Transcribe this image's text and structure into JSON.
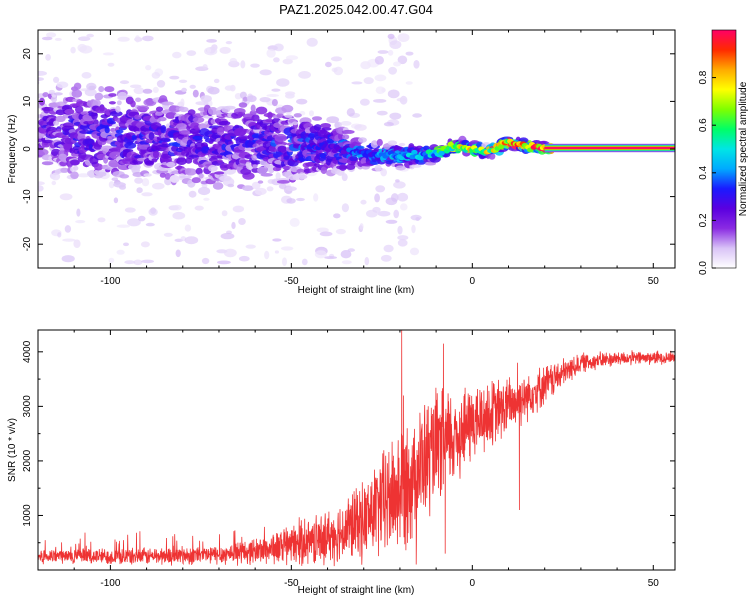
{
  "title": "PAZ1.2025.042.00.47.G04",
  "colorbar": {
    "label": "Normalized spectral amplitude",
    "ticks": [
      "0.0",
      "0.2",
      "0.4",
      "0.6",
      "0.8"
    ],
    "tick_values": [
      0.0,
      0.2,
      0.4,
      0.6,
      0.8
    ],
    "range": [
      0,
      1
    ],
    "colors": [
      "#ffffff",
      "#d9c3f7",
      "#8a2be2",
      "#5a00e0",
      "#1a1aff",
      "#00aaff",
      "#00e5e5",
      "#00ff66",
      "#7fff00",
      "#ffff00",
      "#ffaa00",
      "#ff2a00",
      "#ff0066"
    ]
  },
  "chart_data": [
    {
      "type": "heatmap",
      "title": "",
      "xlabel": "Height of straight line (km)",
      "ylabel": "Frequency (Hz)",
      "xlim": [
        -120,
        56
      ],
      "ylim": [
        -25,
        25
      ],
      "xticks": [
        -100,
        -50,
        0,
        50
      ],
      "yticks": [
        -20,
        -10,
        0,
        10,
        20
      ],
      "xtick_labels": [
        "-100",
        "-50",
        "0",
        "50"
      ],
      "ytick_labels": [
        "-20",
        "-10",
        "0",
        "10",
        "20"
      ],
      "ridge": [
        {
          "x": -120,
          "f": 4.0,
          "spread": 5.5,
          "amp": 0.2
        },
        {
          "x": -110,
          "f": 3.5,
          "spread": 6.0,
          "amp": 0.25
        },
        {
          "x": -100,
          "f": 3.0,
          "spread": 6.5,
          "amp": 0.25
        },
        {
          "x": -90,
          "f": 2.5,
          "spread": 6.0,
          "amp": 0.25
        },
        {
          "x": -80,
          "f": 2.0,
          "spread": 6.0,
          "amp": 0.25
        },
        {
          "x": -70,
          "f": 1.5,
          "spread": 6.0,
          "amp": 0.25
        },
        {
          "x": -60,
          "f": 1.0,
          "spread": 5.5,
          "amp": 0.25
        },
        {
          "x": -50,
          "f": 0.8,
          "spread": 5.0,
          "amp": 0.28
        },
        {
          "x": -40,
          "f": 0.5,
          "spread": 3.5,
          "amp": 0.3
        },
        {
          "x": -30,
          "f": -1.0,
          "spread": 2.0,
          "amp": 0.35
        },
        {
          "x": -20,
          "f": -1.5,
          "spread": 1.4,
          "amp": 0.4
        },
        {
          "x": -10,
          "f": -1.0,
          "spread": 1.0,
          "amp": 0.5
        },
        {
          "x": -5,
          "f": 0.5,
          "spread": 0.8,
          "amp": 0.65
        },
        {
          "x": 0,
          "f": 0.0,
          "spread": 0.7,
          "amp": 0.75
        },
        {
          "x": 5,
          "f": -0.5,
          "spread": 0.6,
          "amp": 0.7
        },
        {
          "x": 10,
          "f": 1.5,
          "spread": 0.6,
          "amp": 0.85
        },
        {
          "x": 15,
          "f": 0.5,
          "spread": 0.5,
          "amp": 0.85
        },
        {
          "x": 20,
          "f": 0.2,
          "spread": 0.5,
          "amp": 0.95
        },
        {
          "x": 56,
          "f": 0.2,
          "spread": 0.5,
          "amp": 1.0
        }
      ]
    },
    {
      "type": "line",
      "title": "",
      "xlabel": "Height of straight line (km)",
      "ylabel": "SNR (10 * v/v)",
      "xlim": [
        -120,
        56
      ],
      "ylim": [
        0,
        4400
      ],
      "xticks": [
        -100,
        -50,
        0,
        50
      ],
      "yticks": [
        1000,
        2000,
        3000,
        4000
      ],
      "xtick_labels": [
        "-100",
        "-50",
        "0",
        "50"
      ],
      "ytick_labels": [
        "1000",
        "2000",
        "3000",
        "4000"
      ],
      "series": [
        {
          "color": "#ee3333",
          "envelope": [
            {
              "x": -120,
              "mean": 250,
              "noise": 120
            },
            {
              "x": -90,
              "mean": 250,
              "noise": 130
            },
            {
              "x": -70,
              "mean": 280,
              "noise": 150
            },
            {
              "x": -60,
              "mean": 350,
              "noise": 200
            },
            {
              "x": -50,
              "mean": 450,
              "noise": 300
            },
            {
              "x": -40,
              "mean": 600,
              "noise": 400
            },
            {
              "x": -30,
              "mean": 900,
              "noise": 600
            },
            {
              "x": -20,
              "mean": 1500,
              "noise": 1000
            },
            {
              "x": -10,
              "mean": 2200,
              "noise": 900
            },
            {
              "x": 0,
              "mean": 2700,
              "noise": 600
            },
            {
              "x": 10,
              "mean": 3000,
              "noise": 450
            },
            {
              "x": 20,
              "mean": 3400,
              "noise": 300
            },
            {
              "x": 30,
              "mean": 3800,
              "noise": 150
            },
            {
              "x": 40,
              "mean": 3880,
              "noise": 110
            },
            {
              "x": 56,
              "mean": 3900,
              "noise": 100
            }
          ],
          "spikes": [
            {
              "x": -19.5,
              "y": 4400
            },
            {
              "x": -19.0,
              "y": 3200
            },
            {
              "x": -18.0,
              "y": 2600
            },
            {
              "x": -15.5,
              "y": 100
            },
            {
              "x": -8.0,
              "y": 4150
            },
            {
              "x": -7.5,
              "y": 300
            },
            {
              "x": 13.0,
              "y": 1100
            },
            {
              "x": 12.5,
              "y": 3800
            }
          ]
        }
      ]
    }
  ]
}
